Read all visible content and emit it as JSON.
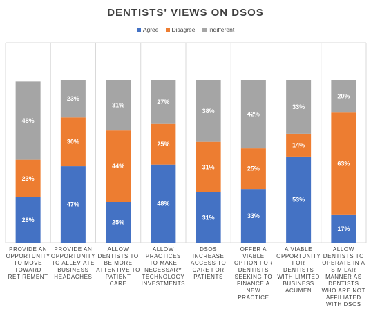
{
  "chart_data": {
    "type": "bar",
    "stacked": true,
    "title": "DENTISTS' VIEWS ON DSOS",
    "categories": [
      "PROVIDE AN OPPORTUNITY TO MOVE TOWARD RETIREMENT",
      "PROVIDE AN OPPORTUNITY TO ALLEVIATE BUSINESS HEADACHES",
      "ALLOW DENTISTS TO BE MORE ATTENTIVE TO PATIENT CARE",
      "ALLOW PRACTICES TO MAKE NECESSARY TECHNOLOGY INVESTMENTS",
      "DSOS INCREASE ACCESS TO CARE FOR PATIENTS",
      "OFFER A VIABLE OPTION FOR DENTISTS SEEKING TO FINANCE A NEW PRACTICE",
      "A VIABLE OPPORTUNITY FOR DENTISTS WITH LIMITED BUSINESS ACUMEN",
      "ALLOW DENTISTS TO OPERATE IN A SIMILAR MANNER AS DENTISTS WHO ARE NOT AFFILIATED WITH DSOS"
    ],
    "series": [
      {
        "name": "Agree",
        "color": "#4472c4",
        "values": [
          28,
          47,
          25,
          48,
          31,
          33,
          53,
          17
        ]
      },
      {
        "name": "Disagree",
        "color": "#ed7d31",
        "values": [
          23,
          30,
          44,
          25,
          31,
          25,
          14,
          63
        ]
      },
      {
        "name": "Indifferent",
        "color": "#a5a5a5",
        "values": [
          48,
          23,
          31,
          27,
          38,
          42,
          33,
          20
        ]
      }
    ],
    "value_suffix": "%",
    "ylim": [
      0,
      100
    ],
    "legend_position": "top",
    "grid": false
  }
}
